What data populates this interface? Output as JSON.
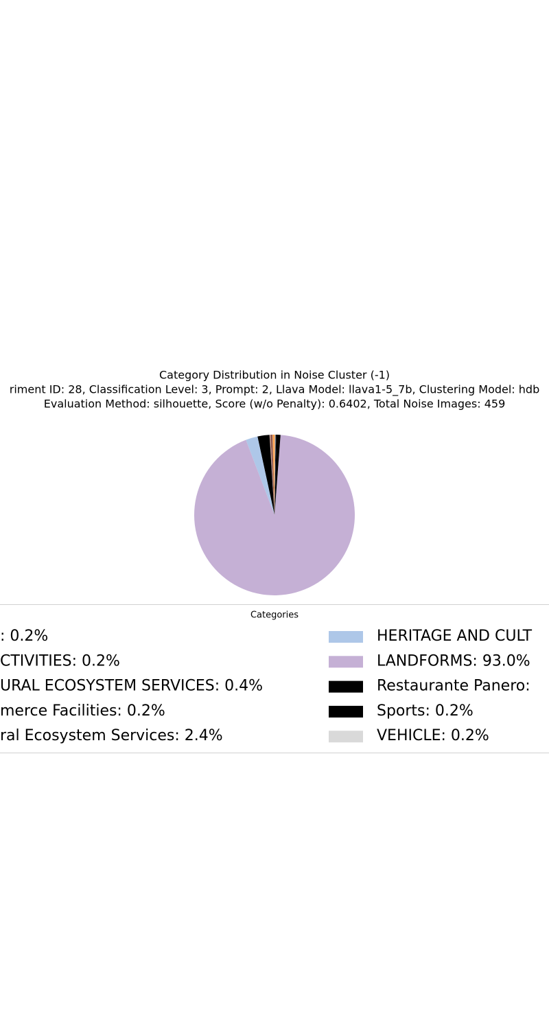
{
  "chart_data": {
    "type": "pie",
    "title": "Category Distribution in Noise Cluster (-1)",
    "subtitle": [
      "riment ID: 28, Classification Level: 3, Prompt: 2, Llava Model: llava1-5_7b, Clustering Model: hdb",
      "Evaluation Method: silhouette, Score (w/o Penalty): 0.6402, Total Noise Images: 459"
    ],
    "legend_title": "Categories",
    "categories": [
      ": 0.2%",
      "CTIVITIES: 0.2%",
      "URAL ECOSYSTEM SERVICES: 0.4%",
      "merce Facilities: 0.2%",
      "ral Ecosystem Services: 2.4%",
      "HERITAGE AND CULT",
      "LANDFORMS: 93.0%",
      "Restaurante Panero:",
      "Sports: 0.2%",
      "VEHICLE: 0.2%"
    ],
    "values": [
      0.2,
      0.2,
      0.4,
      0.2,
      2.4,
      2.4,
      93.0,
      0.8,
      0.2,
      0.2
    ],
    "colors": [
      "#ff7f0e",
      "#ffbb78",
      "#8c564b",
      "#c49c94",
      "#000000",
      "#aec7e8",
      "#c5b0d5",
      "#000000",
      "#000000",
      "#d9d9d9"
    ],
    "start_angle": 90
  }
}
